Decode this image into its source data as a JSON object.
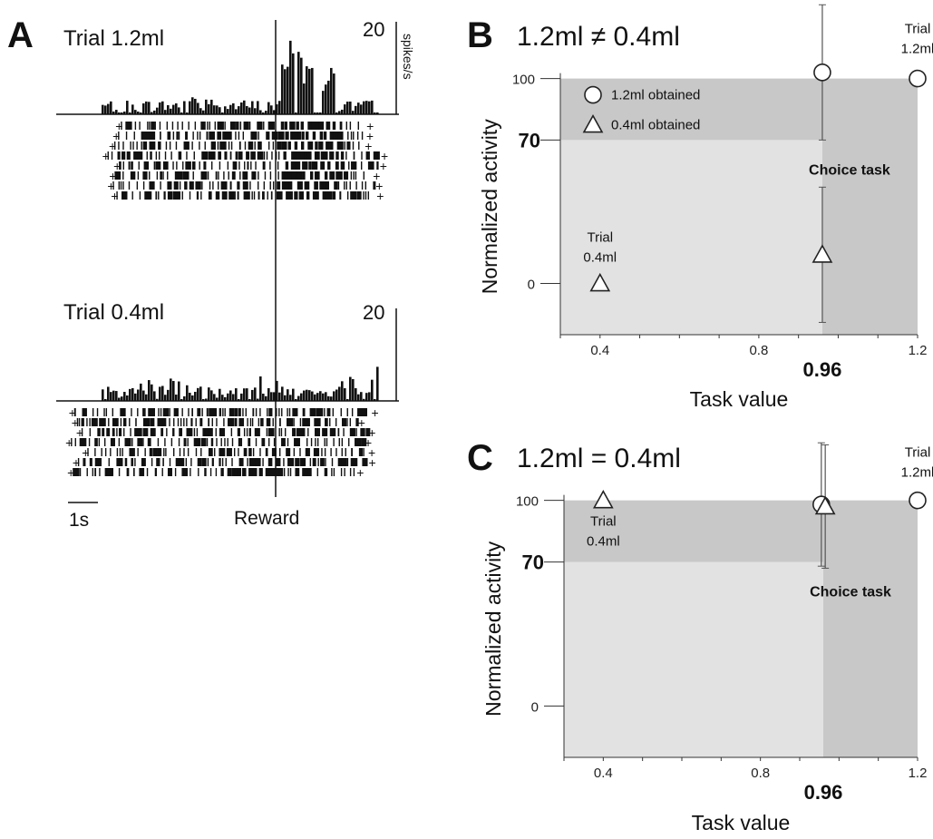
{
  "panel_a": {
    "letter": "A",
    "event_label": "Reward",
    "time_scale_label": "1s",
    "unit_label": "spikes/s",
    "top": {
      "title": "Trial 1.2ml",
      "scale": "20"
    },
    "bottom": {
      "title": "Trial 0.4ml",
      "scale": "20"
    }
  },
  "chart_data": [
    {
      "panel": "B",
      "type": "scatter",
      "title": "1.2ml ≠ 0.4ml",
      "xlabel": "Task value",
      "ylabel": "Normalized activity",
      "xlim": [
        0.3,
        1.2
      ],
      "ylim": [
        -25,
        110
      ],
      "x_ticks": [
        {
          "value": 0.4,
          "label": "0.4",
          "bold": false
        },
        {
          "value": 0.8,
          "label": "0.8",
          "bold": false
        },
        {
          "value": 0.96,
          "label": "0.96",
          "bold": true
        },
        {
          "value": 1.2,
          "label": "1.2",
          "bold": false
        }
      ],
      "y_ticks": [
        {
          "value": 0,
          "label": "0",
          "bold": false
        },
        {
          "value": 70,
          "label": "70",
          "bold": true
        },
        {
          "value": 100,
          "label": "100",
          "bold": false
        }
      ],
      "region_label": "Choice task",
      "legend": [
        {
          "marker": "circle",
          "label": "1.2ml obtained"
        },
        {
          "marker": "triangle",
          "label": "0.4ml obtained"
        }
      ],
      "series": [
        {
          "marker": "circle",
          "points": [
            {
              "x": 0.96,
              "y": 103,
              "err": 33
            },
            {
              "x": 1.2,
              "y": 100,
              "annotation": [
                "Trial",
                "1.2ml"
              ]
            }
          ]
        },
        {
          "marker": "triangle",
          "points": [
            {
              "x": 0.96,
              "y": 14,
              "err": 33
            },
            {
              "x": 0.4,
              "y": 0,
              "annotation": [
                "Trial",
                "0.4ml"
              ]
            }
          ]
        }
      ]
    },
    {
      "panel": "C",
      "type": "scatter",
      "title": "1.2ml = 0.4ml",
      "xlabel": "Task value",
      "ylabel": "Normalized activity",
      "xlim": [
        0.3,
        1.2
      ],
      "ylim": [
        -25,
        110
      ],
      "x_ticks": [
        {
          "value": 0.4,
          "label": "0.4",
          "bold": false
        },
        {
          "value": 0.8,
          "label": "0.8",
          "bold": false
        },
        {
          "value": 0.96,
          "label": "0.96",
          "bold": true
        },
        {
          "value": 1.2,
          "label": "1.2",
          "bold": false
        }
      ],
      "y_ticks": [
        {
          "value": 0,
          "label": "0",
          "bold": false
        },
        {
          "value": 70,
          "label": "70",
          "bold": true
        },
        {
          "value": 100,
          "label": "100",
          "bold": false
        }
      ],
      "region_label": "Choice task",
      "legend": [],
      "series": [
        {
          "marker": "circle",
          "points": [
            {
              "x": 0.955,
              "y": 98,
              "err": 30
            },
            {
              "x": 1.2,
              "y": 100,
              "annotation": [
                "Trial",
                "1.2ml"
              ]
            }
          ]
        },
        {
          "marker": "triangle",
          "points": [
            {
              "x": 0.965,
              "y": 97,
              "err": 30
            },
            {
              "x": 0.4,
              "y": 100,
              "annotation": [
                "Trial",
                "0.4ml"
              ]
            }
          ]
        }
      ]
    }
  ]
}
